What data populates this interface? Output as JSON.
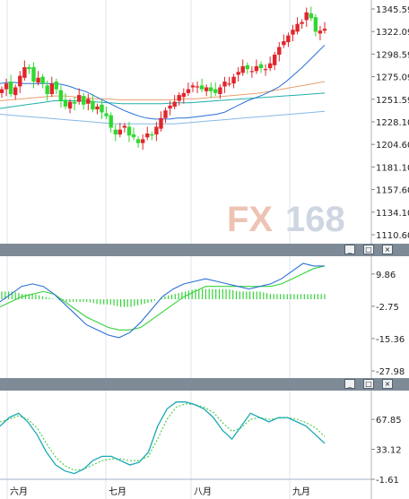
{
  "watermark": "FX168",
  "window_buttons": [
    "_",
    "□",
    "×"
  ],
  "colors": {
    "up_candle": "#e0262b",
    "down_candle": "#2fd92f",
    "ma_blue": "#2a6fd6",
    "ma_orange": "#e8a070",
    "ma_teal": "#20b0a8",
    "ma_lightblue": "#86b8e6",
    "macd_dif": "#2a6fd6",
    "macd_dea": "#36d23a",
    "kdj_k": "#1aa9b5",
    "kdj_d": "#5fd25f",
    "watermark_fx": "#e8b09a",
    "watermark_168": "#c6d0dc"
  },
  "chart_data": [
    {
      "type": "candlestick",
      "panel": "price",
      "y_ticks": [
        "1345.59",
        "1322.09",
        "1298.59",
        "1275.09",
        "1251.59",
        "1228.10",
        "1204.60",
        "1181.10",
        "1157.60",
        "1134.10",
        "1110.60"
      ],
      "ylim": [
        1110.6,
        1345.59
      ],
      "x_labels": [
        "六月",
        "七月",
        "八月",
        "九月"
      ],
      "series": [
        {
          "name": "candles_close",
          "values": [
            1262,
            1268,
            1257,
            1264,
            1276,
            1285,
            1283,
            1270,
            1274,
            1268,
            1257,
            1268,
            1262,
            1250,
            1244,
            1249,
            1247,
            1256,
            1246,
            1252,
            1241,
            1244,
            1238,
            1234,
            1222,
            1215,
            1220,
            1224,
            1214,
            1212,
            1206,
            1210,
            1216,
            1214,
            1223,
            1232,
            1240,
            1245,
            1249,
            1256,
            1258,
            1262,
            1266,
            1265,
            1262,
            1264,
            1260,
            1258,
            1264,
            1270,
            1268,
            1275,
            1280,
            1286,
            1283,
            1281,
            1286,
            1284,
            1283,
            1289,
            1298,
            1306,
            1312,
            1318,
            1324,
            1330,
            1332,
            1342,
            1336,
            1322,
            1323,
            1325
          ]
        },
        {
          "name": "ma_blue",
          "values": [
            1268,
            1269,
            1269,
            1268,
            1268,
            1268,
            1268,
            1268,
            1267,
            1265,
            1262,
            1260,
            1256,
            1252,
            1248,
            1244,
            1240,
            1237,
            1234,
            1232,
            1231,
            1231,
            1231,
            1232,
            1232,
            1233,
            1234,
            1235,
            1236,
            1238,
            1242,
            1246,
            1250,
            1253,
            1256,
            1260,
            1264,
            1270,
            1277,
            1284,
            1292,
            1300,
            1308
          ]
        },
        {
          "name": "ma_orange",
          "values": [
            1250,
            1251,
            1252,
            1253,
            1254,
            1255,
            1255,
            1254,
            1253,
            1252,
            1252,
            1251,
            1251,
            1251,
            1251,
            1251,
            1251,
            1252,
            1252,
            1253,
            1254,
            1255,
            1256,
            1257,
            1258,
            1260,
            1262,
            1264,
            1266,
            1268,
            1270
          ]
        },
        {
          "name": "ma_teal",
          "values": [
            1242,
            1244,
            1246,
            1248,
            1250,
            1250,
            1250,
            1249,
            1248,
            1247,
            1247,
            1247,
            1247,
            1248,
            1248,
            1249,
            1250,
            1251,
            1252,
            1253,
            1254,
            1255,
            1256,
            1257,
            1258
          ]
        },
        {
          "name": "ma_lightblue",
          "values": [
            1236,
            1235,
            1234,
            1233,
            1232,
            1231,
            1230,
            1229,
            1228,
            1227,
            1226,
            1226,
            1226,
            1226,
            1226,
            1226,
            1227,
            1228,
            1229,
            1230,
            1231,
            1232,
            1233,
            1234,
            1235,
            1236,
            1237,
            1238,
            1239
          ]
        }
      ]
    },
    {
      "type": "macd",
      "panel": "macd",
      "y_ticks": [
        "9.86",
        "-2.75",
        "-15.36",
        "-27.98"
      ],
      "ylim": [
        -27.98,
        14
      ],
      "series": [
        {
          "name": "dif",
          "values": [
            -1,
            2,
            5,
            6,
            5,
            2,
            -2,
            -6,
            -10,
            -12,
            -14,
            -15,
            -13,
            -9,
            -4,
            1,
            4,
            6,
            7,
            8,
            7,
            6,
            5,
            4,
            5,
            6,
            8,
            11,
            14,
            13,
            13
          ]
        },
        {
          "name": "dea",
          "values": [
            -3,
            -1,
            1,
            2,
            3,
            2,
            -1,
            -4,
            -7,
            -9,
            -11,
            -12,
            -12,
            -11,
            -8,
            -5,
            -2,
            1,
            3,
            5,
            5,
            5,
            5,
            5,
            5,
            5,
            6,
            8,
            10,
            12,
            13
          ]
        },
        {
          "name": "histogram",
          "values": [
            3,
            3,
            2,
            2,
            1,
            0,
            -1,
            -1,
            -1,
            -2,
            -2,
            -3,
            -3,
            -2,
            -1,
            1,
            2,
            3,
            4,
            4,
            4,
            4,
            3,
            3,
            3,
            2,
            2,
            2,
            2,
            2,
            2
          ]
        }
      ]
    },
    {
      "type": "line",
      "panel": "kdj",
      "y_ticks": [
        "67.85",
        "33.12",
        "-1.61"
      ],
      "ylim": [
        -1.61,
        95
      ],
      "series": [
        {
          "name": "k",
          "values": [
            60,
            70,
            75,
            65,
            50,
            30,
            15,
            8,
            5,
            10,
            20,
            25,
            25,
            20,
            15,
            18,
            30,
            60,
            80,
            88,
            88,
            85,
            80,
            70,
            55,
            45,
            60,
            75,
            70,
            65,
            70,
            70,
            65,
            60,
            50,
            40
          ]
        },
        {
          "name": "d",
          "values": [
            65,
            68,
            72,
            68,
            58,
            40,
            24,
            14,
            9,
            10,
            15,
            20,
            22,
            22,
            20,
            20,
            25,
            45,
            68,
            82,
            86,
            85,
            82,
            76,
            64,
            54,
            58,
            68,
            70,
            68,
            69,
            70,
            68,
            64,
            58,
            48
          ]
        }
      ]
    }
  ]
}
